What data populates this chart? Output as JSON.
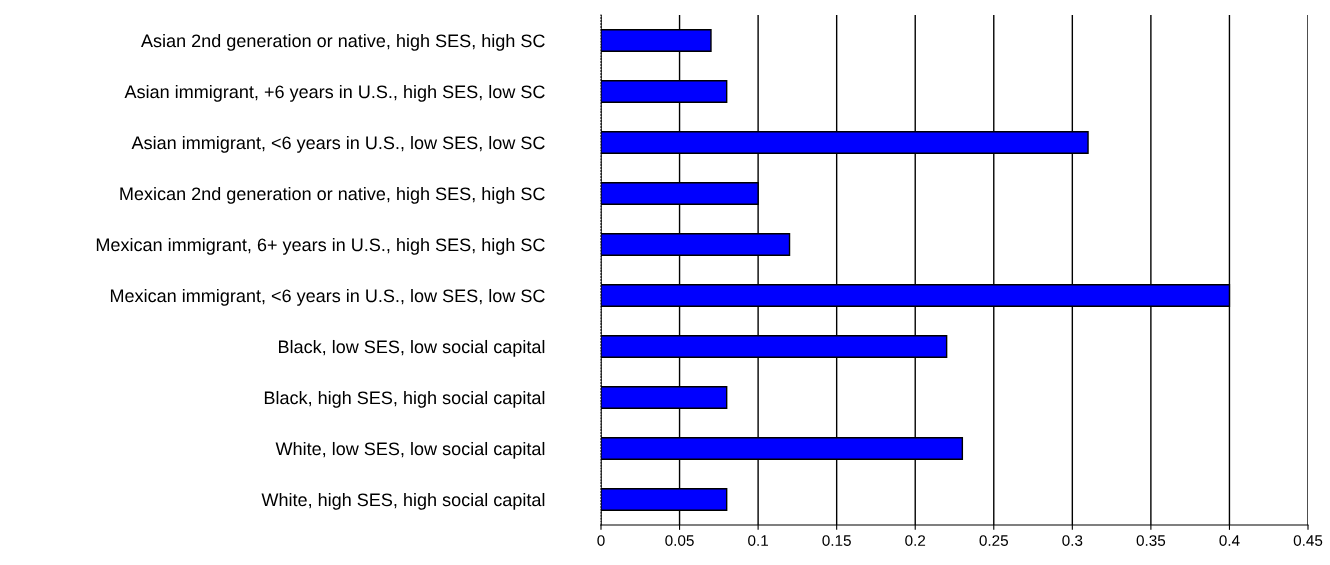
{
  "chart_data": {
    "type": "bar",
    "orientation": "horizontal",
    "categories": [
      "Asian 2nd generation or native, high SES, high SC",
      "Asian immigrant, +6 years in U.S., high SES, low SC",
      "Asian immigrant, <6 years in U.S., low SES, low SC",
      "Mexican 2nd generation or native, high SES, high SC",
      "Mexican immigrant, 6+ years in U.S., high SES, high SC",
      "Mexican immigrant, <6 years in U.S., low SES, low SC",
      "Black, low SES, low social capital",
      "Black, high SES, high social capital",
      "White, low SES, low social capital",
      "White, high SES, high social capital"
    ],
    "values": [
      0.07,
      0.08,
      0.31,
      0.1,
      0.12,
      0.4,
      0.22,
      0.08,
      0.23,
      0.08
    ],
    "color": "#0000ff",
    "xlim": [
      0,
      0.45
    ],
    "xticks": [
      0,
      0.05,
      0.1,
      0.15,
      0.2,
      0.25,
      0.3,
      0.35,
      0.4,
      0.45
    ],
    "grid": "x"
  }
}
